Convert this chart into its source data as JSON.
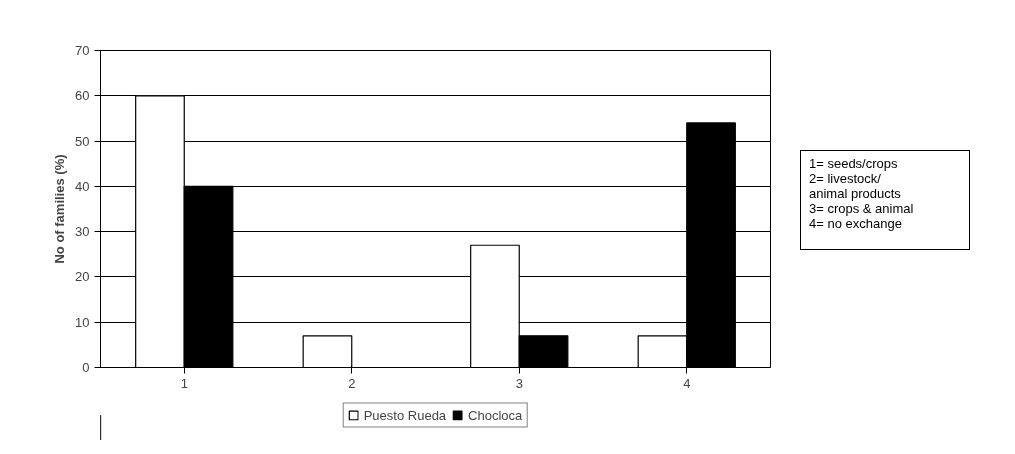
{
  "chart_data": {
    "type": "bar",
    "ylabel": "No of families (%)",
    "categories": [
      "1",
      "2",
      "3",
      "4"
    ],
    "series": [
      {
        "name": "Puesto Rueda",
        "color": "#ffffff",
        "values": [
          60,
          7,
          27,
          7
        ]
      },
      {
        "name": "Chocloca",
        "color": "#000000",
        "values": [
          40,
          0,
          7,
          54
        ]
      }
    ],
    "ylim": [
      0,
      70
    ],
    "yticks": [
      0,
      10,
      20,
      30,
      40,
      50,
      60,
      70
    ],
    "grid": "y",
    "legend": "bottom",
    "annotations": [
      "1= seeds/crops\n2= livestock/\nanimal products\n3= crops & animal\n4= no exchange"
    ]
  }
}
